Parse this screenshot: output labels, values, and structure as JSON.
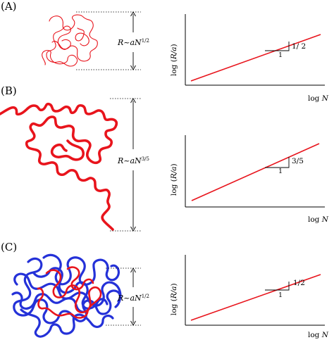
{
  "panels": [
    {
      "label": "(A)",
      "size_prefix": "R~aN",
      "size_exponent": "1/2",
      "ylabel_pre": "log (",
      "ylabel_it": "R/a",
      "ylabel_post": ")",
      "xlabel_pre": "log ",
      "xlabel_it": "N",
      "run_label": "1",
      "slope_label": "1/ 2"
    },
    {
      "label": "(B)",
      "size_prefix": "R~aN",
      "size_exponent": "3/5",
      "ylabel_pre": "log (",
      "ylabel_it": "R/a",
      "ylabel_post": ")",
      "xlabel_pre": "log ",
      "xlabel_it": "N",
      "run_label": "1",
      "slope_label": "3/5"
    },
    {
      "label": "(C)",
      "size_prefix": "R~aN",
      "size_exponent": "1/2",
      "ylabel_pre": "log (",
      "ylabel_it": "R/a",
      "ylabel_post": ")",
      "xlabel_pre": "log ",
      "xlabel_it": "N",
      "run_label": "1",
      "slope_label": "1/2"
    }
  ],
  "colors": {
    "chain_red": "#e8141c",
    "chain_blue": "#2431d8",
    "trend_line": "#e8141c"
  }
}
